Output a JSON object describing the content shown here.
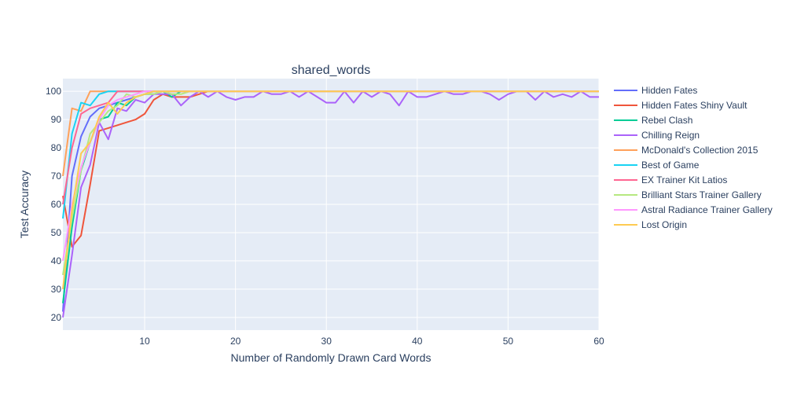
{
  "chart_data": {
    "type": "line",
    "title": "shared_words",
    "xlabel": "Number of Randomly Drawn Card Words",
    "ylabel": "Test Accuracy",
    "xlim": [
      1,
      60
    ],
    "ylim": [
      15.5,
      104.5
    ],
    "xticks": [
      10,
      20,
      30,
      40,
      50,
      60
    ],
    "yticks": [
      20,
      30,
      40,
      50,
      60,
      70,
      80,
      90,
      100
    ],
    "grid": true,
    "legend_position": "right",
    "series": [
      {
        "name": "Hidden Fates",
        "color": "#636efa",
        "x": [
          1,
          2,
          3,
          4,
          5,
          6,
          7,
          8,
          9,
          10,
          11,
          12,
          13,
          14,
          15,
          16,
          17,
          18,
          19,
          20,
          21,
          22,
          23,
          24,
          25,
          26,
          27,
          28,
          29,
          30,
          31,
          32,
          33,
          34,
          35,
          36,
          37,
          38,
          39,
          40,
          41,
          42,
          43,
          44,
          45,
          46,
          47,
          48,
          49,
          50,
          51,
          52,
          53,
          54,
          55,
          56,
          57,
          58,
          59,
          60
        ],
        "y": [
          22,
          70,
          84,
          91,
          94,
          95,
          96,
          97,
          98,
          99,
          100,
          100,
          100,
          100,
          100,
          100,
          100,
          100,
          100,
          100,
          100,
          100,
          100,
          100,
          100,
          100,
          100,
          100,
          100,
          100,
          100,
          100,
          100,
          100,
          100,
          100,
          100,
          100,
          100,
          100,
          100,
          100,
          100,
          100,
          100,
          100,
          100,
          100,
          100,
          100,
          100,
          100,
          100,
          100,
          100,
          100,
          100,
          100,
          100,
          100
        ]
      },
      {
        "name": "Hidden Fates Shiny Vault",
        "color": "#ef553b",
        "x": [
          1,
          2,
          3,
          4,
          5,
          6,
          7,
          8,
          9,
          10,
          11,
          12,
          13,
          14,
          15,
          16,
          17,
          18,
          19,
          20,
          21,
          22,
          23,
          24,
          25,
          26,
          27,
          28,
          29,
          30,
          31,
          32,
          33,
          34,
          35,
          36,
          37,
          38,
          39,
          40,
          41,
          42,
          43,
          44,
          45,
          46,
          47,
          48,
          49,
          50,
          51,
          52,
          53,
          54,
          55,
          56,
          57,
          58,
          59,
          60
        ],
        "y": [
          63,
          45,
          49,
          67,
          86,
          87,
          88,
          89,
          90,
          92,
          97,
          99,
          98,
          98,
          98,
          99,
          100,
          100,
          100,
          100,
          100,
          100,
          100,
          100,
          100,
          100,
          100,
          100,
          100,
          100,
          100,
          100,
          100,
          100,
          100,
          100,
          100,
          100,
          100,
          100,
          100,
          100,
          100,
          100,
          100,
          100,
          100,
          100,
          100,
          100,
          100,
          100,
          100,
          100,
          100,
          100,
          100,
          100,
          100,
          100
        ]
      },
      {
        "name": "Rebel Clash",
        "color": "#00cc96",
        "x": [
          1,
          2,
          3,
          4,
          5,
          6,
          7,
          8,
          9,
          10,
          11,
          12,
          13,
          14,
          15,
          16,
          17,
          18,
          19,
          20,
          21,
          22,
          23,
          24,
          25,
          26,
          27,
          28,
          29,
          30,
          31,
          32,
          33,
          34,
          35,
          36,
          37,
          38,
          39,
          40,
          41,
          42,
          43,
          44,
          45,
          46,
          47,
          48,
          49,
          50,
          51,
          52,
          53,
          54,
          55,
          56,
          57,
          58,
          59,
          60
        ],
        "y": [
          25,
          52,
          72,
          82,
          90,
          91,
          96,
          95,
          98,
          99,
          99,
          100,
          98,
          100,
          100,
          100,
          100,
          100,
          100,
          100,
          100,
          100,
          100,
          100,
          100,
          100,
          100,
          100,
          100,
          100,
          100,
          100,
          100,
          100,
          100,
          100,
          100,
          100,
          100,
          100,
          100,
          100,
          100,
          100,
          100,
          100,
          100,
          100,
          100,
          100,
          100,
          100,
          100,
          100,
          100,
          100,
          100,
          100,
          100,
          100
        ]
      },
      {
        "name": "Chilling Reign",
        "color": "#ab63fa",
        "x": [
          1,
          2,
          3,
          4,
          5,
          6,
          7,
          8,
          9,
          10,
          11,
          12,
          13,
          14,
          15,
          16,
          17,
          18,
          19,
          20,
          21,
          22,
          23,
          24,
          25,
          26,
          27,
          28,
          29,
          30,
          31,
          32,
          33,
          34,
          35,
          36,
          37,
          38,
          39,
          40,
          41,
          42,
          43,
          44,
          45,
          46,
          47,
          48,
          49,
          50,
          51,
          52,
          53,
          54,
          55,
          56,
          57,
          58,
          59,
          60
        ],
        "y": [
          20,
          42,
          66,
          74,
          89,
          83,
          94,
          93,
          97,
          96,
          99,
          99,
          99,
          95,
          98,
          100,
          98,
          100,
          98,
          97,
          98,
          98,
          100,
          99,
          99,
          100,
          98,
          100,
          98,
          96,
          96,
          100,
          96,
          100,
          98,
          100,
          99,
          95,
          100,
          98,
          98,
          99,
          100,
          99,
          99,
          100,
          100,
          99,
          97,
          99,
          100,
          100,
          97,
          100,
          98,
          99,
          98,
          100,
          98,
          98
        ]
      },
      {
        "name": "McDonald's Collection 2015",
        "color": "#ffa15a",
        "x": [
          1,
          2,
          3,
          4,
          5,
          6,
          7,
          8,
          9,
          10,
          11,
          12,
          13,
          14,
          15,
          16,
          17,
          18,
          19,
          20,
          21,
          22,
          23,
          24,
          25,
          26,
          27,
          28,
          29,
          30,
          31,
          32,
          33,
          34,
          35,
          36,
          37,
          38,
          39,
          40,
          41,
          42,
          43,
          44,
          45,
          46,
          47,
          48,
          49,
          50,
          51,
          52,
          53,
          54,
          55,
          56,
          57,
          58,
          59,
          60
        ],
        "y": [
          70,
          94,
          93,
          100,
          100,
          100,
          100,
          100,
          100,
          100,
          100,
          100,
          100,
          100,
          100,
          100,
          100,
          100,
          100,
          100,
          100,
          100,
          100,
          100,
          100,
          100,
          100,
          100,
          100,
          100,
          100,
          100,
          100,
          100,
          100,
          100,
          100,
          100,
          100,
          100,
          100,
          100,
          100,
          100,
          100,
          100,
          100,
          100,
          100,
          100,
          100,
          100,
          100,
          100,
          100,
          100,
          100,
          100,
          100,
          100
        ]
      },
      {
        "name": "Best of Game",
        "color": "#19d3f3",
        "x": [
          1,
          2,
          3,
          4,
          5,
          6,
          7,
          8,
          9,
          10,
          11,
          12,
          13,
          14,
          15,
          16,
          17,
          18,
          19,
          20,
          21,
          22,
          23,
          24,
          25,
          26,
          27,
          28,
          29,
          30,
          31,
          32,
          33,
          34,
          35,
          36,
          37,
          38,
          39,
          40,
          41,
          42,
          43,
          44,
          45,
          46,
          47,
          48,
          49,
          50,
          51,
          52,
          53,
          54,
          55,
          56,
          57,
          58,
          59,
          60
        ],
        "y": [
          55,
          85,
          96,
          95,
          99,
          100,
          100,
          100,
          100,
          100,
          100,
          100,
          100,
          100,
          100,
          100,
          100,
          100,
          100,
          100,
          100,
          100,
          100,
          100,
          100,
          100,
          100,
          100,
          100,
          100,
          100,
          100,
          100,
          100,
          100,
          100,
          100,
          100,
          100,
          100,
          100,
          100,
          100,
          100,
          100,
          100,
          100,
          100,
          100,
          100,
          100,
          100,
          100,
          100,
          100,
          100,
          100,
          100,
          100,
          100
        ]
      },
      {
        "name": "EX Trainer Kit Latios",
        "color": "#ff6692",
        "x": [
          1,
          2,
          3,
          4,
          5,
          6,
          7,
          8,
          9,
          10,
          11,
          12,
          13,
          14,
          15,
          16,
          17,
          18,
          19,
          20,
          21,
          22,
          23,
          24,
          25,
          26,
          27,
          28,
          29,
          30,
          31,
          32,
          33,
          34,
          35,
          36,
          37,
          38,
          39,
          40,
          41,
          42,
          43,
          44,
          45,
          46,
          47,
          48,
          49,
          50,
          51,
          52,
          53,
          54,
          55,
          56,
          57,
          58,
          59,
          60
        ],
        "y": [
          60,
          80,
          92,
          94,
          95,
          96,
          100,
          100,
          100,
          100,
          100,
          100,
          100,
          100,
          100,
          100,
          100,
          100,
          100,
          100,
          100,
          100,
          100,
          100,
          100,
          100,
          100,
          100,
          100,
          100,
          100,
          100,
          100,
          100,
          100,
          100,
          100,
          100,
          100,
          100,
          100,
          100,
          100,
          100,
          100,
          100,
          100,
          100,
          100,
          100,
          100,
          100,
          100,
          100,
          100,
          100,
          100,
          100,
          100,
          100
        ]
      },
      {
        "name": "Brilliant Stars Trainer Gallery",
        "color": "#b6e880",
        "x": [
          1,
          2,
          3,
          4,
          5,
          6,
          7,
          8,
          9,
          10,
          11,
          12,
          13,
          14,
          15,
          16,
          17,
          18,
          19,
          20,
          21,
          22,
          23,
          24,
          25,
          26,
          27,
          28,
          29,
          30,
          31,
          32,
          33,
          34,
          35,
          36,
          37,
          38,
          39,
          40,
          41,
          42,
          43,
          44,
          45,
          46,
          47,
          48,
          49,
          50,
          51,
          52,
          53,
          54,
          55,
          56,
          57,
          58,
          59,
          60
        ],
        "y": [
          35,
          55,
          72,
          85,
          89,
          93,
          95,
          99,
          98,
          99,
          99,
          100,
          99,
          99,
          100,
          100,
          100,
          100,
          100,
          100,
          100,
          100,
          100,
          100,
          100,
          100,
          100,
          100,
          100,
          100,
          100,
          100,
          100,
          100,
          100,
          100,
          100,
          100,
          100,
          100,
          100,
          100,
          100,
          100,
          100,
          100,
          100,
          100,
          100,
          100,
          100,
          100,
          100,
          100,
          100,
          100,
          100,
          100,
          100,
          100
        ]
      },
      {
        "name": "Astral Radiance Trainer Gallery",
        "color": "#ff97ff",
        "x": [
          1,
          2,
          3,
          4,
          5,
          6,
          7,
          8,
          9,
          10,
          11,
          12,
          13,
          14,
          15,
          16,
          17,
          18,
          19,
          20,
          21,
          22,
          23,
          24,
          25,
          26,
          27,
          28,
          29,
          30,
          31,
          32,
          33,
          34,
          35,
          36,
          37,
          38,
          39,
          40,
          41,
          42,
          43,
          44,
          45,
          46,
          47,
          48,
          49,
          50,
          51,
          52,
          53,
          54,
          55,
          56,
          57,
          58,
          59,
          60
        ],
        "y": [
          40,
          60,
          73,
          82,
          90,
          95,
          97,
          98,
          99,
          100,
          100,
          100,
          100,
          100,
          100,
          100,
          100,
          100,
          100,
          100,
          100,
          100,
          100,
          100,
          100,
          100,
          100,
          100,
          100,
          100,
          100,
          100,
          100,
          100,
          100,
          100,
          100,
          100,
          100,
          100,
          100,
          100,
          100,
          100,
          100,
          100,
          100,
          100,
          100,
          100,
          100,
          100,
          100,
          100,
          100,
          100,
          100,
          100,
          100,
          100
        ]
      },
      {
        "name": "Lost Origin",
        "color": "#fecb52",
        "x": [
          1,
          2,
          3,
          4,
          5,
          6,
          7,
          8,
          9,
          10,
          11,
          12,
          13,
          14,
          15,
          16,
          17,
          18,
          19,
          20,
          21,
          22,
          23,
          24,
          25,
          26,
          27,
          28,
          29,
          30,
          31,
          32,
          33,
          34,
          35,
          36,
          37,
          38,
          39,
          40,
          41,
          42,
          43,
          44,
          45,
          46,
          47,
          48,
          49,
          50,
          51,
          52,
          53,
          54,
          55,
          56,
          57,
          58,
          59,
          60
        ],
        "y": [
          30,
          58,
          78,
          82,
          91,
          96,
          92,
          96,
          98,
          99,
          100,
          100,
          100,
          100,
          100,
          100,
          100,
          100,
          100,
          100,
          100,
          100,
          100,
          100,
          100,
          100,
          100,
          100,
          100,
          100,
          100,
          100,
          100,
          100,
          100,
          100,
          100,
          100,
          100,
          100,
          100,
          100,
          100,
          100,
          100,
          100,
          100,
          100,
          100,
          100,
          100,
          100,
          100,
          100,
          100,
          100,
          100,
          100,
          100,
          100
        ]
      }
    ]
  }
}
